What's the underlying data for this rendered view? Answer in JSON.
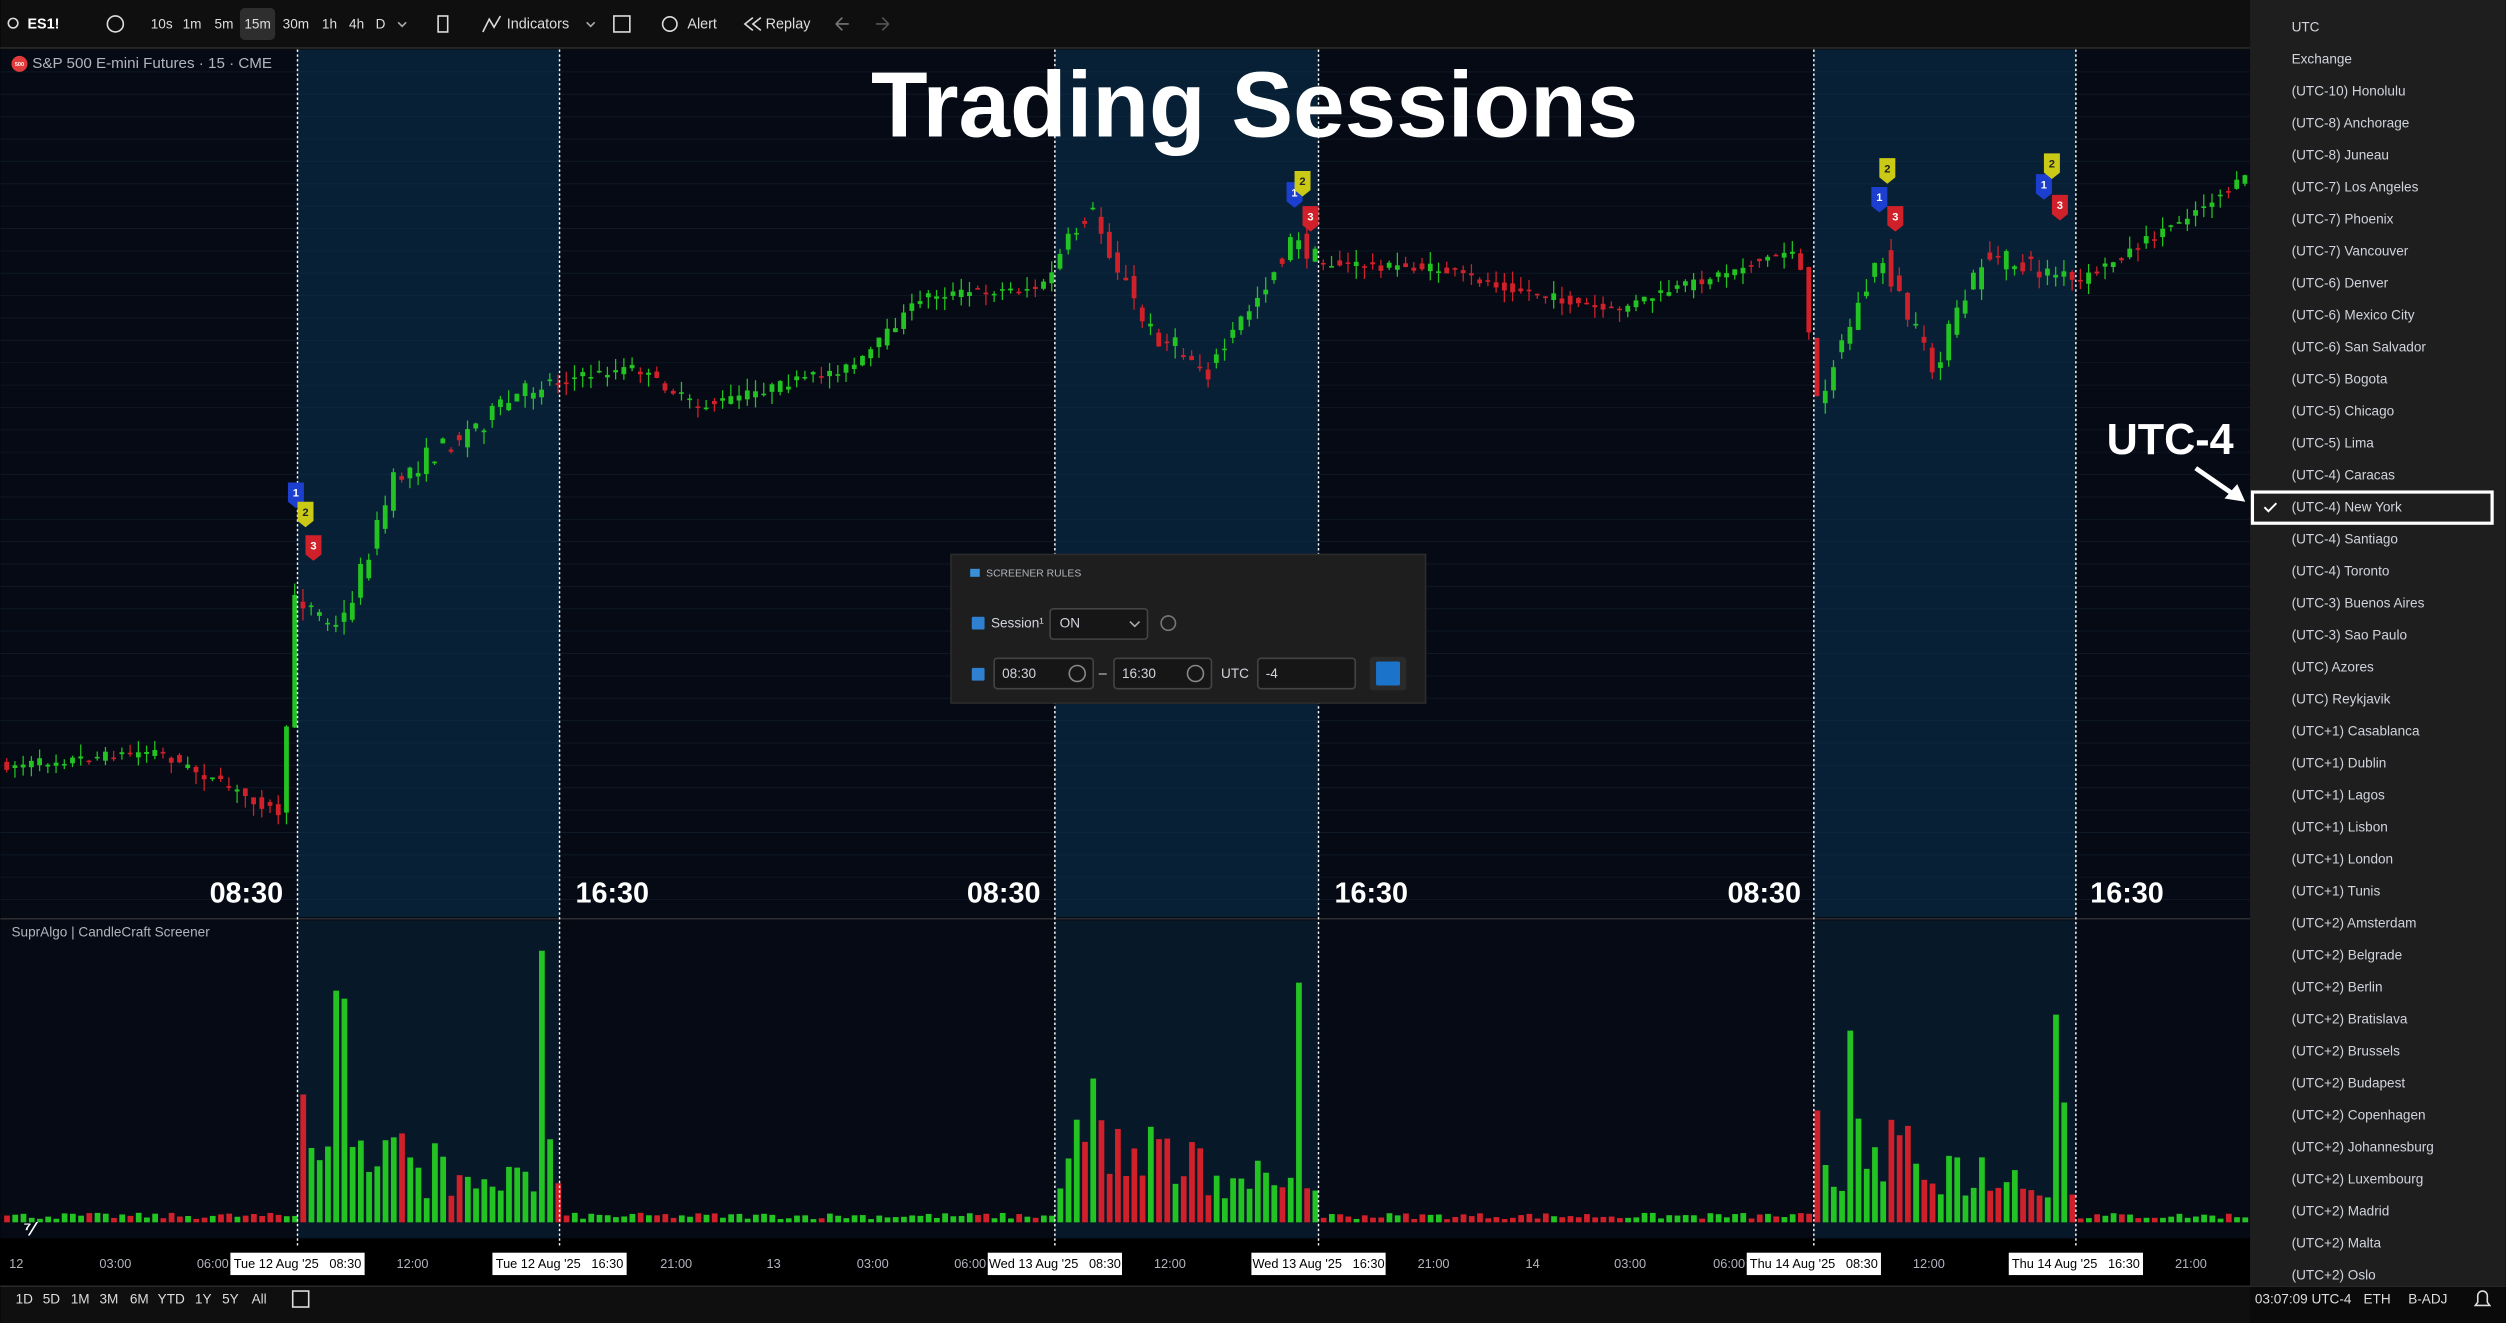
{
  "toolbar": {
    "symbol": "ES1!",
    "intervals": [
      "10s",
      "1m",
      "5m",
      "15m",
      "30m",
      "1h",
      "4h",
      "D"
    ],
    "active_interval": 3,
    "indicators": "Indicators",
    "alert": "Alert",
    "replay": "Replay"
  },
  "chart": {
    "symbol_badge": "500",
    "title": "S&P 500 E-mini Futures · 15 · CME",
    "heading": "Trading Sessions",
    "session_labels": [
      "08:30",
      "16:30",
      "08:30",
      "16:30",
      "08:30",
      "16:30"
    ],
    "indicator_title": "SuprAlgo | CandleCraft Screener",
    "annotation": "UTC-4",
    "markers": [
      "1",
      "2",
      "3"
    ],
    "x_labels": [
      {
        "text": "12",
        "highlight": false
      },
      {
        "text": "03:00",
        "highlight": false
      },
      {
        "text": "06:00",
        "highlight": false
      },
      {
        "text": "Tue 12 Aug '25   08:30",
        "highlight": true
      },
      {
        "text": "12:00",
        "highlight": false
      },
      {
        "text": "Tue 12 Aug '25   16:30",
        "highlight": true
      },
      {
        "text": "21:00",
        "highlight": false
      },
      {
        "text": "13",
        "highlight": false
      },
      {
        "text": "03:00",
        "highlight": false
      },
      {
        "text": "06:00",
        "highlight": false
      },
      {
        "text": "Wed 13 Aug '25   08:30",
        "highlight": true
      },
      {
        "text": "12:00",
        "highlight": false
      },
      {
        "text": "Wed 13 Aug '25   16:30",
        "highlight": true
      },
      {
        "text": "21:00",
        "highlight": false
      },
      {
        "text": "14",
        "highlight": false
      },
      {
        "text": "03:00",
        "highlight": false
      },
      {
        "text": "06:00",
        "highlight": false
      },
      {
        "text": "Thu 14 Aug '25   08:30",
        "highlight": true
      },
      {
        "text": "12:00",
        "highlight": false
      },
      {
        "text": "Thu 14 Aug '25   16:30",
        "highlight": true
      },
      {
        "text": "21:00",
        "highlight": false
      }
    ]
  },
  "screener": {
    "header": "SCREENER RULES",
    "session_label": "Session¹",
    "session_value": "ON",
    "start": "08:30",
    "dash": "–",
    "end": "16:30",
    "utc_label": "UTC",
    "utc_offset": "-4"
  },
  "bottom_bar": {
    "ranges": [
      "1D",
      "5D",
      "1M",
      "3M",
      "6M",
      "YTD",
      "1Y",
      "5Y",
      "All"
    ],
    "clock": "03:07:09 UTC-4",
    "eth": "ETH",
    "badj": "B-ADJ"
  },
  "timezone_menu": {
    "items": [
      "UTC",
      "Exchange",
      "(UTC-10) Honolulu",
      "(UTC-8) Anchorage",
      "(UTC-8) Juneau",
      "(UTC-7) Los Angeles",
      "(UTC-7) Phoenix",
      "(UTC-7) Vancouver",
      "(UTC-6) Denver",
      "(UTC-6) Mexico City",
      "(UTC-6) San Salvador",
      "(UTC-5) Bogota",
      "(UTC-5) Chicago",
      "(UTC-5) Lima",
      "(UTC-4) Caracas",
      "(UTC-4) New York",
      "(UTC-4) Santiago",
      "(UTC-4) Toronto",
      "(UTC-3) Buenos Aires",
      "(UTC-3) Sao Paulo",
      "(UTC) Azores",
      "(UTC) Reykjavik",
      "(UTC+1) Casablanca",
      "(UTC+1) Dublin",
      "(UTC+1) Lagos",
      "(UTC+1) Lisbon",
      "(UTC+1) London",
      "(UTC+1) Tunis",
      "(UTC+2) Amsterdam",
      "(UTC+2) Belgrade",
      "(UTC+2) Berlin",
      "(UTC+2) Bratislava",
      "(UTC+2) Brussels",
      "(UTC+2) Budapest",
      "(UTC+2) Copenhagen",
      "(UTC+2) Johannesburg",
      "(UTC+2) Luxembourg",
      "(UTC+2) Madrid",
      "(UTC+2) Malta",
      "(UTC+2) Oslo"
    ],
    "selected": 15
  }
}
